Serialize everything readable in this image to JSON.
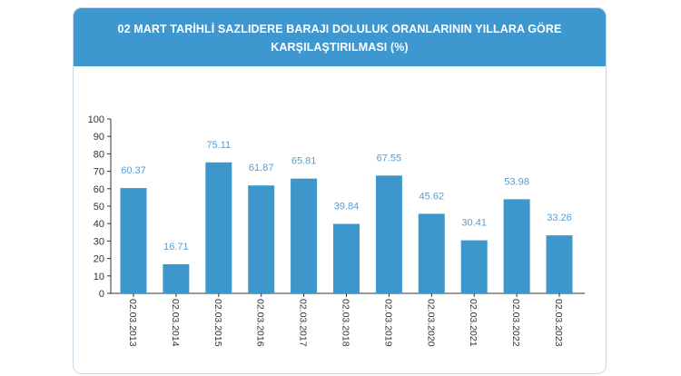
{
  "header": {
    "title_line1": "02 MART TARİHLİ SAZLIDERE BARAJI DOLULUK ORANLARININ YILLARA GÖRE",
    "title_line2": "KARŞILAŞTIRILMASI (%)"
  },
  "colors": {
    "header_bg": "#3f97cf",
    "bar": "#3d97cb",
    "value_label": "#5a9ccc",
    "axis": "#333333"
  },
  "chart_data": {
    "type": "bar",
    "title": "02 MART TARİHLİ SAZLIDERE BARAJI DOLULUK ORANLARININ YILLARA GÖRE KARŞILAŞTIRILMASI (%)",
    "categories": [
      "02.03.2013",
      "02.03.2014",
      "02.03.2015",
      "02.03.2016",
      "02.03.2017",
      "02.03.2018",
      "02.03.2019",
      "02.03.2020",
      "02.03.2021",
      "02.03.2022",
      "02.03.2023"
    ],
    "values": [
      60.37,
      16.71,
      75.11,
      61.87,
      65.81,
      39.84,
      67.55,
      45.62,
      30.41,
      53.98,
      33.26
    ],
    "value_labels": [
      "60.37",
      "16.71",
      "75.11",
      "61.87",
      "65.81",
      "39.84",
      "67.55",
      "45.62",
      "30.41",
      "53.98",
      "33.26"
    ],
    "yticks": [
      "0",
      "10",
      "20",
      "30",
      "40",
      "50",
      "60",
      "70",
      "80",
      "90",
      "100"
    ],
    "ylim": [
      0,
      100
    ],
    "grid": false,
    "legend": "none"
  }
}
